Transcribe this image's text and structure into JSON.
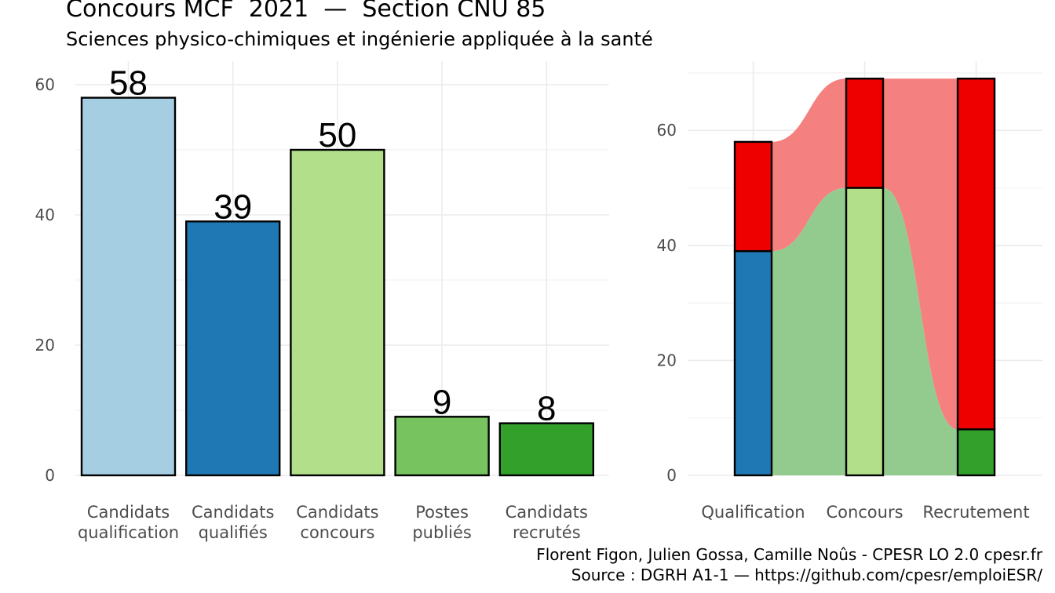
{
  "header": {
    "title": "Concours MCF  2021  —  Section CNU 85",
    "subtitle": "Sciences physico-chimiques et ingénierie appliquée à la santé"
  },
  "footer": {
    "caption_line1": "Florent Figon, Julien Gossa, Camille Noûs - CPESR LO 2.0 cpesr.fr",
    "caption_line2": "Source : DGRH A1-1 — https://github.com/cpesr/emploiESR/"
  },
  "chart_data": [
    {
      "type": "bar",
      "categories": [
        [
          "Candidats",
          "qualification"
        ],
        [
          "Candidats",
          "qualifiés"
        ],
        [
          "Candidats",
          "concours"
        ],
        [
          "Postes",
          "publiés"
        ],
        [
          "Candidats",
          "recrutés"
        ]
      ],
      "values": [
        58,
        39,
        50,
        9,
        8
      ],
      "data_labels": [
        "58",
        "39",
        "50",
        "9",
        "8"
      ],
      "colors": [
        "#a6cee3",
        "#1f78b4",
        "#b2df8a",
        "#77c35f",
        "#33a02c"
      ],
      "ylim": [
        0,
        60
      ],
      "yticks": [
        0,
        20,
        40,
        60
      ],
      "grid": true,
      "legend": "none"
    },
    {
      "type": "bar",
      "stacked": true,
      "categories": [
        "Qualification",
        "Concours",
        "Recrutement"
      ],
      "series": [
        {
          "values": [
            39,
            50,
            8
          ],
          "colors": [
            "#1f78b4",
            "#b2df8a",
            "#33a02c"
          ]
        },
        {
          "values": [
            19,
            19,
            61
          ],
          "color": "#ee0000"
        }
      ],
      "flows": [
        {
          "from": "Qualification",
          "to": "Concours",
          "y_from": [
            0,
            39
          ],
          "y_to": [
            0,
            50
          ],
          "color": "#93cb8e"
        },
        {
          "from": "Qualification",
          "to": "Concours",
          "y_from": [
            39,
            58
          ],
          "y_to": [
            50,
            69
          ],
          "color": "#f58080"
        },
        {
          "from": "Concours",
          "to": "Recrutement",
          "y_from": [
            0,
            50
          ],
          "y_to": [
            0,
            8
          ],
          "color": "#93cb8e"
        },
        {
          "from": "Concours",
          "to": "Recrutement",
          "y_from": [
            50,
            69
          ],
          "y_to": [
            8,
            69
          ],
          "color": "#f58080"
        }
      ],
      "ylim": [
        0,
        60
      ],
      "yticks": [
        0,
        20,
        40,
        60
      ],
      "grid": true,
      "legend": "none"
    }
  ]
}
